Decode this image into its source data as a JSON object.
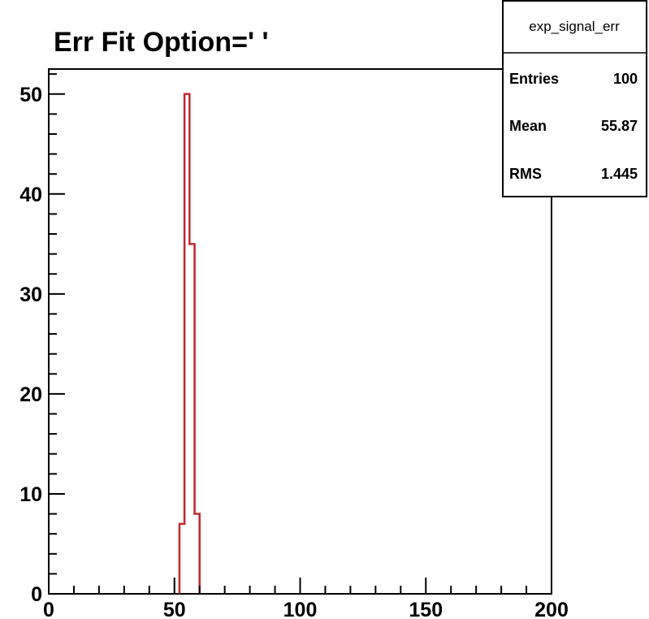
{
  "chart_data": {
    "type": "histogram",
    "title": "Err Fit Option=' '",
    "xlabel": "",
    "ylabel": "",
    "xlim": [
      0,
      200
    ],
    "ylim": [
      0,
      52.5
    ],
    "x_ticks": [
      0,
      50,
      100,
      150,
      200
    ],
    "y_ticks": [
      0,
      10,
      20,
      30,
      40,
      50
    ],
    "line_color": "#c0282d",
    "bins": [
      {
        "x_low": 52,
        "x_high": 54,
        "value": 7
      },
      {
        "x_low": 54,
        "x_high": 56,
        "value": 50
      },
      {
        "x_low": 56,
        "x_high": 58,
        "value": 35
      },
      {
        "x_low": 58,
        "x_high": 60,
        "value": 8
      }
    ],
    "stats_box": {
      "name": "exp_signal_err",
      "rows": [
        {
          "label": "Entries",
          "value": "100"
        },
        {
          "label": "Mean",
          "value": "55.87"
        },
        {
          "label": "RMS",
          "value": "1.445"
        }
      ]
    }
  }
}
